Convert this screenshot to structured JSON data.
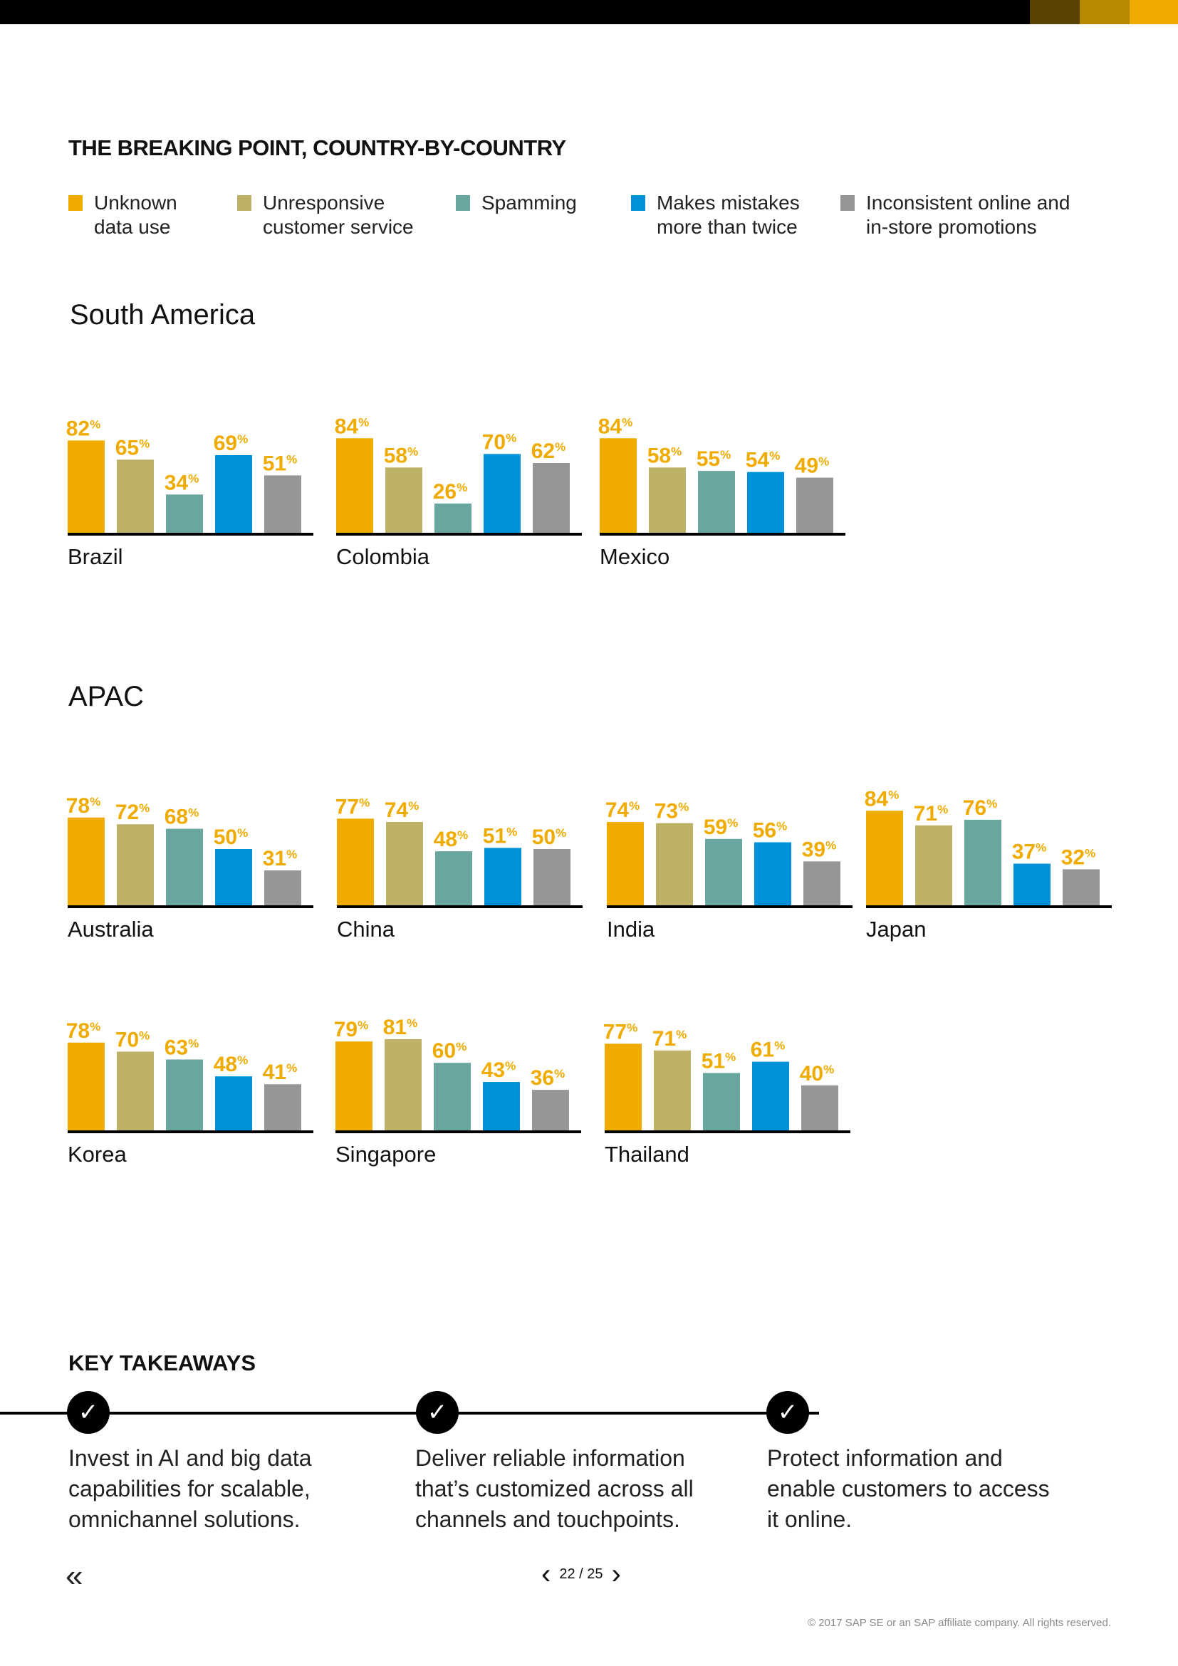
{
  "header": {
    "bar_colors": [
      "#5a4300",
      "#b68a00",
      "#f0ab00"
    ]
  },
  "title": "THE BREAKING POINT, COUNTRY-BY-COUNTRY",
  "legend": [
    {
      "label": "Unknown\ndata use",
      "color": "#f0ab00"
    },
    {
      "label": "Unresponsive\ncustomer service",
      "color": "#bdb166"
    },
    {
      "label": "Spamming",
      "color": "#6aa6a0"
    },
    {
      "label": "Makes mistakes\nmore than twice",
      "color": "#0092d8"
    },
    {
      "label": "Inconsistent online and\nin-store promotions",
      "color": "#969696"
    }
  ],
  "regions": {
    "south_america": "South America",
    "apac": "APAC"
  },
  "percent_sign": "%",
  "chart_data": {
    "type": "bar",
    "title": "THE BREAKING POINT, COUNTRY-BY-COUNTRY",
    "ylim": [
      0,
      100
    ],
    "series_names": [
      "Unknown data use",
      "Unresponsive customer service",
      "Spamming",
      "Makes mistakes more than twice",
      "Inconsistent online and in-store promotions"
    ],
    "groups": [
      {
        "region": "South America",
        "country": "Brazil",
        "values": [
          82,
          65,
          34,
          69,
          51
        ]
      },
      {
        "region": "South America",
        "country": "Colombia",
        "values": [
          84,
          58,
          26,
          70,
          62
        ]
      },
      {
        "region": "South America",
        "country": "Mexico",
        "values": [
          84,
          58,
          55,
          54,
          49
        ]
      },
      {
        "region": "APAC",
        "country": "Australia",
        "values": [
          78,
          72,
          68,
          50,
          31
        ]
      },
      {
        "region": "APAC",
        "country": "China",
        "values": [
          77,
          74,
          48,
          51,
          50
        ]
      },
      {
        "region": "APAC",
        "country": "India",
        "values": [
          74,
          73,
          59,
          56,
          39
        ]
      },
      {
        "region": "APAC",
        "country": "Japan",
        "values": [
          84,
          71,
          76,
          37,
          32
        ]
      },
      {
        "region": "APAC",
        "country": "Korea",
        "values": [
          78,
          70,
          63,
          48,
          41
        ]
      },
      {
        "region": "APAC",
        "country": "Singapore",
        "values": [
          79,
          81,
          60,
          43,
          36
        ]
      },
      {
        "region": "APAC",
        "country": "Thailand",
        "values": [
          77,
          71,
          51,
          61,
          40
        ]
      }
    ]
  },
  "key_takeaways": {
    "title": "KEY TAKEAWAYS",
    "items": [
      "Invest in AI and big data capabilities for scalable, omnichannel solutions.",
      "Deliver reliable information that’s customized across all channels and touchpoints.",
      "Protect information and enable customers to access it online."
    ],
    "check_icon": "checkmark-icon"
  },
  "navigation": {
    "back": "«",
    "prev": "‹",
    "next": "›",
    "page": "22 / 25"
  },
  "footer": {
    "copyright": "© 2017 SAP SE or an SAP affiliate company. All rights reserved."
  }
}
